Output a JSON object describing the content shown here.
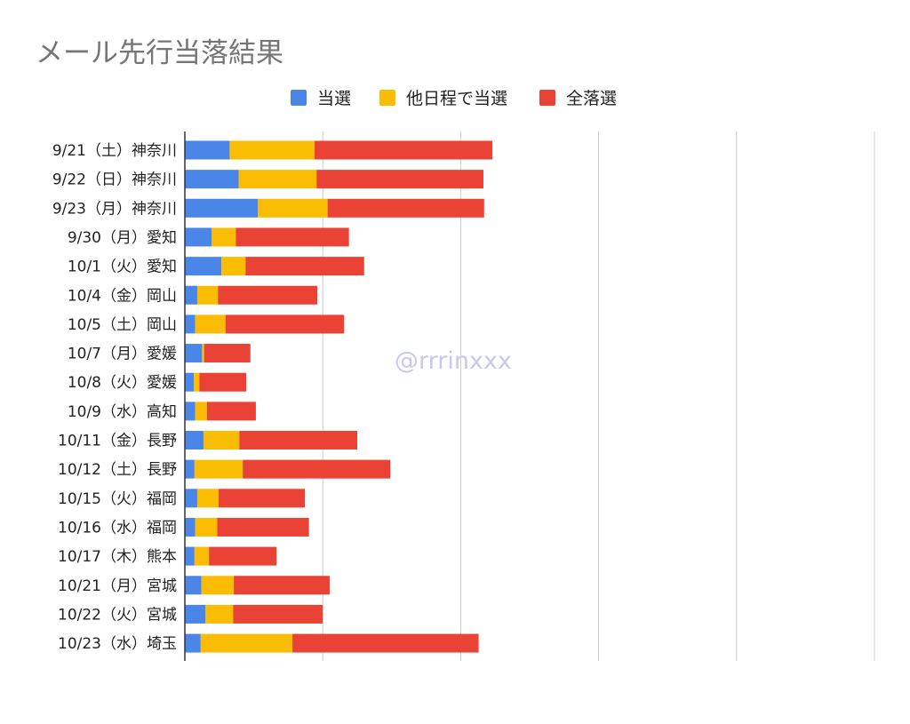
{
  "chart_data": {
    "type": "bar",
    "orientation": "horizontal",
    "stacked": true,
    "title": "メール先行当落結果",
    "watermark": "@rrrinxxx",
    "legend_position": "top",
    "grid": true,
    "xlim": [
      0,
      100
    ],
    "categories": [
      "9/21（土）神奈川",
      "9/22（日）神奈川",
      "9/23（月）神奈川",
      "9/30（月）愛知",
      "10/1（火）愛知",
      "10/4（金）岡山",
      "10/5（土）岡山",
      "10/7（月）愛媛",
      "10/8（火）愛媛",
      "10/9（水）高知",
      "10/11（金）長野",
      "10/12（土）長野",
      "10/15（火）福岡",
      "10/16（水）福岡",
      "10/17（木）熊本",
      "10/21（月）宮城",
      "10/22（火）宮城",
      "10/23（水）埼玉"
    ],
    "series": [
      {
        "name": "当選",
        "color": "#4a86e8",
        "values": [
          6.5,
          7.8,
          10.6,
          3.9,
          5.3,
          1.8,
          1.5,
          2.5,
          1.3,
          1.5,
          2.7,
          1.4,
          1.8,
          1.5,
          1.4,
          2.4,
          3.0,
          2.3
        ]
      },
      {
        "name": "他日程で当選",
        "color": "#fbbc04",
        "values": [
          12.3,
          11.3,
          10.1,
          3.5,
          3.5,
          3.0,
          4.4,
          0.3,
          0.8,
          1.7,
          5.2,
          7.0,
          3.1,
          3.2,
          2.1,
          4.7,
          4.0,
          13.3
        ]
      },
      {
        "name": "全落選",
        "color": "#ea4335",
        "values": [
          25.8,
          24.2,
          22.7,
          16.4,
          17.2,
          14.4,
          17.2,
          6.7,
          6.8,
          7.1,
          17.1,
          21.4,
          12.5,
          13.3,
          9.8,
          13.9,
          13.0,
          27.0
        ]
      }
    ]
  }
}
